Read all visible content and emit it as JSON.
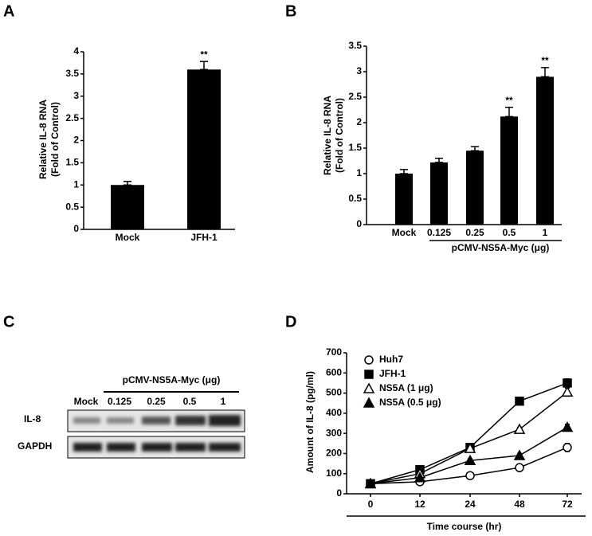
{
  "chart_data": [
    {
      "type": "bar",
      "panel_label": "A",
      "y_label": [
        "Relative IL-8 RNA",
        "(Fold of Control)"
      ],
      "categories": [
        "Mock",
        "JFH-1"
      ],
      "values": [
        1.0,
        3.6
      ],
      "errors": [
        0.08,
        0.18
      ],
      "significance": [
        null,
        "**"
      ],
      "color": "#000000",
      "ylim": [
        0,
        4
      ],
      "yticks": [
        0,
        0.5,
        1,
        1.5,
        2,
        2.5,
        3,
        3.5,
        4
      ]
    },
    {
      "type": "bar",
      "panel_label": "B",
      "y_label": [
        "Relative IL-8 RNA",
        "(Fold of Control)"
      ],
      "categories": [
        "Mock",
        "0.125",
        "0.25",
        "0.5",
        "1"
      ],
      "values": [
        1.0,
        1.22,
        1.45,
        2.12,
        2.9
      ],
      "errors": [
        0.08,
        0.08,
        0.08,
        0.18,
        0.18
      ],
      "significance": [
        null,
        null,
        null,
        "**",
        "**"
      ],
      "x_group_label": "pCMV-NS5A-Myc (μg)",
      "color": "#000000",
      "ylim": [
        0,
        3.5
      ],
      "yticks": [
        0,
        0.5,
        1,
        1.5,
        2,
        2.5,
        3,
        3.5
      ]
    },
    {
      "type": "line",
      "panel_label": "D",
      "y_label": "Amount of IL-8 (pg/ml)",
      "x_label": "Time course (hr)",
      "categories": [
        "0",
        "12",
        "24",
        "48",
        "72"
      ],
      "series": [
        {
          "name": "Huh7",
          "color": "#000000",
          "marker": "circle",
          "filled": false,
          "values": [
            50,
            60,
            90,
            130,
            230
          ],
          "errors": [
            8,
            8,
            10,
            15,
            20
          ]
        },
        {
          "name": "JFH-1",
          "color": "#000000",
          "marker": "square",
          "filled": true,
          "values": [
            50,
            120,
            230,
            460,
            550
          ],
          "errors": [
            5,
            6,
            8,
            10,
            20
          ]
        },
        {
          "name": "NS5A (1 μg)",
          "color": "#000000",
          "marker": "triangle",
          "filled": false,
          "values": [
            50,
            100,
            225,
            320,
            505
          ],
          "errors": [
            5,
            6,
            8,
            10,
            20
          ]
        },
        {
          "name": "NS5A (0.5 μg)",
          "color": "#000000",
          "marker": "triangle",
          "filled": true,
          "values": [
            50,
            80,
            165,
            190,
            330
          ],
          "errors": [
            5,
            6,
            8,
            10,
            15
          ]
        }
      ],
      "ylim": [
        0,
        700
      ],
      "yticks": [
        0,
        100,
        200,
        300,
        400,
        500,
        600,
        700
      ]
    }
  ],
  "blot": {
    "panel_label": "C",
    "group_label": "pCMV-NS5A-Myc (μg)",
    "lanes": [
      "Mock",
      "0.125",
      "0.25",
      "0.5",
      "1"
    ],
    "rows": [
      "IL-8",
      "GAPDH"
    ]
  }
}
